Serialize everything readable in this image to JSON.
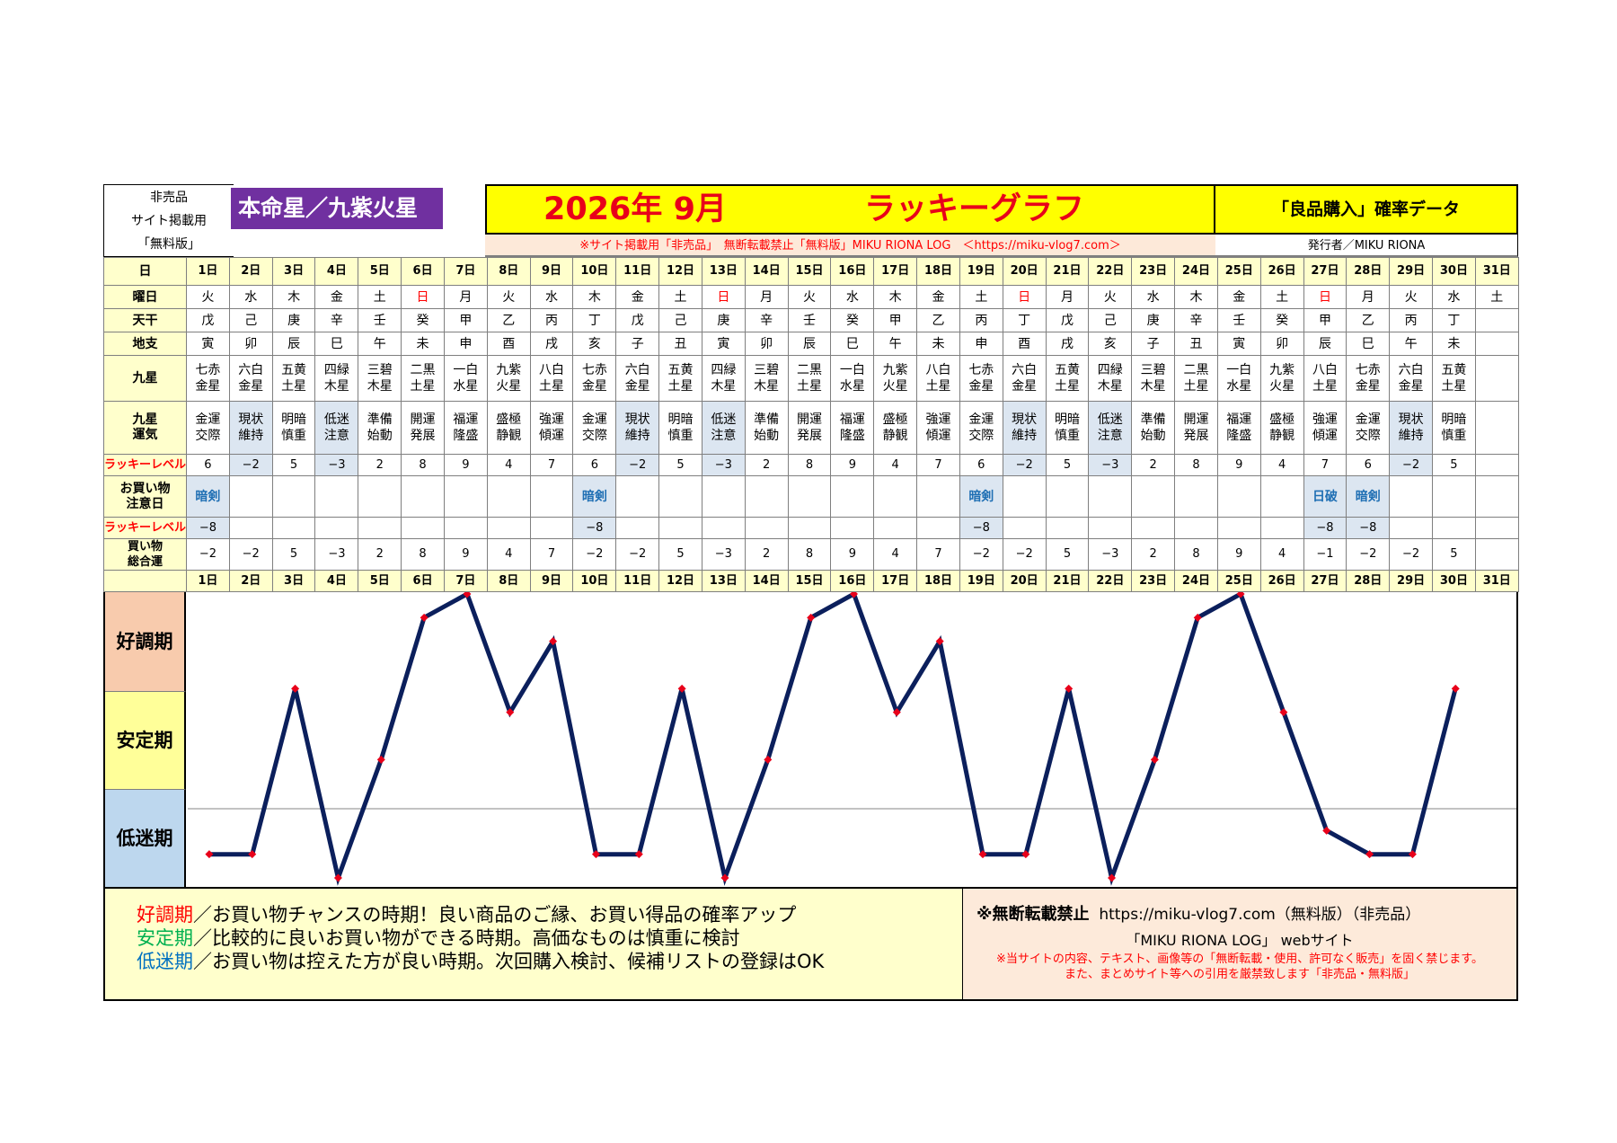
{
  "header": {
    "left_lines": [
      "非売品",
      "サイト掲載用",
      "「無料版」"
    ],
    "honmeisei": "本命星／九紫火星",
    "year_month": "2026年 9月",
    "title": "ラッキーグラフ",
    "subtitle": "「良品購入」確率データ",
    "notice": "※サイト掲載用「非売品」　無断転載禁止「無料版」MIKU RIONA LOG　＜https://miku-vlog7.com＞",
    "publisher": "発行者／MIKU RIONA"
  },
  "row_labels": {
    "day": "日",
    "weekday": "曜日",
    "tenkan": "天干",
    "chishi": "地支",
    "kyusei": "九星",
    "kyusei_unki": "九星運気",
    "lucky_level": "ラッキーレベル",
    "shopping_caution": "お買い物注意日",
    "lucky_level2": "ラッキーレベル",
    "shopping_total": "買い物総合運"
  },
  "days": [
    "1日",
    "2日",
    "3日",
    "4日",
    "5日",
    "6日",
    "7日",
    "8日",
    "9日",
    "10日",
    "11日",
    "12日",
    "13日",
    "14日",
    "15日",
    "16日",
    "17日",
    "18日",
    "19日",
    "20日",
    "21日",
    "22日",
    "23日",
    "24日",
    "25日",
    "26日",
    "27日",
    "28日",
    "29日",
    "30日",
    "31日"
  ],
  "weekdays": [
    "火",
    "水",
    "木",
    "金",
    "土",
    "日",
    "月",
    "火",
    "水",
    "木",
    "金",
    "土",
    "日",
    "月",
    "火",
    "水",
    "木",
    "金",
    "土",
    "日",
    "月",
    "火",
    "水",
    "木",
    "金",
    "土",
    "日",
    "月",
    "火",
    "水",
    "土"
  ],
  "tenkan": [
    "戊",
    "己",
    "庚",
    "辛",
    "壬",
    "癸",
    "甲",
    "乙",
    "丙",
    "丁",
    "戊",
    "己",
    "庚",
    "辛",
    "壬",
    "癸",
    "甲",
    "乙",
    "丙",
    "丁",
    "戊",
    "己",
    "庚",
    "辛",
    "壬",
    "癸",
    "甲",
    "乙",
    "丙",
    "丁",
    ""
  ],
  "chishi": [
    "寅",
    "卯",
    "辰",
    "巳",
    "午",
    "未",
    "申",
    "酉",
    "戌",
    "亥",
    "子",
    "丑",
    "寅",
    "卯",
    "辰",
    "巳",
    "午",
    "未",
    "申",
    "酉",
    "戌",
    "亥",
    "子",
    "丑",
    "寅",
    "卯",
    "辰",
    "巳",
    "午",
    "未",
    ""
  ],
  "kyusei": [
    [
      "七赤",
      "金星"
    ],
    [
      "六白",
      "金星"
    ],
    [
      "五黄",
      "土星"
    ],
    [
      "四緑",
      "木星"
    ],
    [
      "三碧",
      "木星"
    ],
    [
      "二黒",
      "土星"
    ],
    [
      "一白",
      "水星"
    ],
    [
      "九紫",
      "火星"
    ],
    [
      "八白",
      "土星"
    ],
    [
      "七赤",
      "金星"
    ],
    [
      "六白",
      "金星"
    ],
    [
      "五黄",
      "土星"
    ],
    [
      "四緑",
      "木星"
    ],
    [
      "三碧",
      "木星"
    ],
    [
      "二黒",
      "土星"
    ],
    [
      "一白",
      "水星"
    ],
    [
      "九紫",
      "火星"
    ],
    [
      "八白",
      "土星"
    ],
    [
      "七赤",
      "金星"
    ],
    [
      "六白",
      "金星"
    ],
    [
      "五黄",
      "土星"
    ],
    [
      "四緑",
      "木星"
    ],
    [
      "三碧",
      "木星"
    ],
    [
      "二黒",
      "土星"
    ],
    [
      "一白",
      "水星"
    ],
    [
      "九紫",
      "火星"
    ],
    [
      "八白",
      "土星"
    ],
    [
      "七赤",
      "金星"
    ],
    [
      "六白",
      "金星"
    ],
    [
      "五黄",
      "土星"
    ],
    [
      "",
      ""
    ]
  ],
  "unki": [
    [
      "金運",
      "交際"
    ],
    [
      "現状",
      "維持"
    ],
    [
      "明暗",
      "慎重"
    ],
    [
      "低迷",
      "注意"
    ],
    [
      "準備",
      "始動"
    ],
    [
      "開運",
      "発展"
    ],
    [
      "福運",
      "隆盛"
    ],
    [
      "盛極",
      "静観"
    ],
    [
      "強運",
      "傾運"
    ],
    [
      "金運",
      "交際"
    ],
    [
      "現状",
      "維持"
    ],
    [
      "明暗",
      "慎重"
    ],
    [
      "低迷",
      "注意"
    ],
    [
      "準備",
      "始動"
    ],
    [
      "開運",
      "発展"
    ],
    [
      "福運",
      "隆盛"
    ],
    [
      "盛極",
      "静観"
    ],
    [
      "強運",
      "傾運"
    ],
    [
      "金運",
      "交際"
    ],
    [
      "現状",
      "維持"
    ],
    [
      "明暗",
      "慎重"
    ],
    [
      "低迷",
      "注意"
    ],
    [
      "準備",
      "始動"
    ],
    [
      "開運",
      "発展"
    ],
    [
      "福運",
      "隆盛"
    ],
    [
      "盛極",
      "静観"
    ],
    [
      "強運",
      "傾運"
    ],
    [
      "金運",
      "交際"
    ],
    [
      "現状",
      "維持"
    ],
    [
      "明暗",
      "慎重"
    ],
    [
      "",
      ""
    ]
  ],
  "lucky_level": [
    "6",
    "−2",
    "5",
    "−3",
    "2",
    "8",
    "9",
    "4",
    "7",
    "6",
    "−2",
    "5",
    "−3",
    "2",
    "8",
    "9",
    "4",
    "7",
    "6",
    "−2",
    "5",
    "−3",
    "2",
    "8",
    "9",
    "4",
    "7",
    "6",
    "−2",
    "5",
    ""
  ],
  "shopping_caution": [
    "暗剣",
    "",
    "",
    "",
    "",
    "",
    "",
    "",
    "",
    "暗剣",
    "",
    "",
    "",
    "",
    "",
    "",
    "",
    "",
    "暗剣",
    "",
    "",
    "",
    "",
    "",
    "",
    "",
    "日破",
    "暗剣",
    "",
    "",
    ""
  ],
  "lucky_level2": [
    "−8",
    "",
    "",
    "",
    "",
    "",
    "",
    "",
    "",
    "−8",
    "",
    "",
    "",
    "",
    "",
    "",
    "",
    "",
    "−8",
    "",
    "",
    "",
    "",
    "",
    "",
    "",
    "−8",
    "−8",
    "",
    "",
    ""
  ],
  "shopping_total": [
    "−2",
    "−2",
    "5",
    "−3",
    "2",
    "8",
    "9",
    "4",
    "7",
    "−2",
    "−2",
    "5",
    "−3",
    "2",
    "8",
    "9",
    "4",
    "7",
    "−2",
    "−2",
    "5",
    "−3",
    "2",
    "8",
    "9",
    "4",
    "−1",
    "−2",
    "−2",
    "5",
    ""
  ],
  "chart_labels": [
    "好調期",
    "安定期",
    "低迷期"
  ],
  "chart_data": {
    "type": "line",
    "x": [
      "1日",
      "2日",
      "3日",
      "4日",
      "5日",
      "6日",
      "7日",
      "8日",
      "9日",
      "10日",
      "11日",
      "12日",
      "13日",
      "14日",
      "15日",
      "16日",
      "17日",
      "18日",
      "19日",
      "20日",
      "21日",
      "22日",
      "23日",
      "24日",
      "25日",
      "26日",
      "27日",
      "28日",
      "29日",
      "30日"
    ],
    "series": [
      {
        "values": [
          -2,
          -2,
          5,
          -3,
          2,
          8,
          9,
          4,
          7,
          -2,
          -2,
          5,
          -3,
          2,
          8,
          9,
          4,
          7,
          -2,
          -2,
          5,
          -3,
          2,
          8,
          9,
          4,
          -1,
          -2,
          -2,
          5
        ]
      }
    ],
    "ylim": [
      -3,
      9
    ],
    "bands": [
      "好調期",
      "安定期",
      "低迷期"
    ],
    "line_color": "#0b1f5c",
    "marker_color": "#e8001a"
  },
  "footer": {
    "legend": [
      {
        "key": "好調期",
        "text": "／お買い物チャンスの時期！良い商品のご縁、お買い得品の確率アップ"
      },
      {
        "key": "安定期",
        "text": "／比較的に良いお買い物ができる時期。高価なものは慎重に検討"
      },
      {
        "key": "低迷期",
        "text": "／お買い物は控えた方が良い時期。次回購入検討、候補リストの登録はOK"
      }
    ],
    "right_line1_bold": "※無断転載禁止",
    "right_line1": "https://miku-vlog7.com（無料版）（非売品）",
    "right_line2": "「MIKU RIONA LOG」 webサイト",
    "right_line3a": "※当サイトの内容、テキスト、画像等の「無断転載・使用、許可なく販売」を固く禁じます。",
    "right_line3b": "また、まとめサイト等への引用を厳禁致します「非売品・無料版」"
  }
}
